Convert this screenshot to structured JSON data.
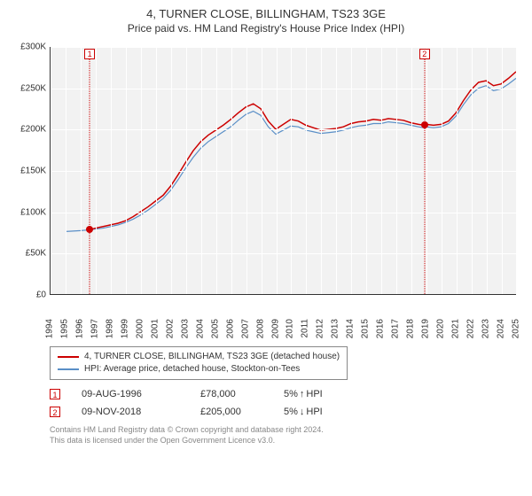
{
  "title": "4, TURNER CLOSE, BILLINGHAM, TS23 3GE",
  "subtitle": "Price paid vs. HM Land Registry's House Price Index (HPI)",
  "chart": {
    "type": "line",
    "background_color": "#f2f2f2",
    "grid_color": "#ffffff",
    "axis_color": "#333333",
    "label_fontsize": 10,
    "title_fontsize": 13,
    "y": {
      "min": 0,
      "max": 300000,
      "step": 50000,
      "ticks": [
        {
          "v": 0,
          "label": "£0"
        },
        {
          "v": 50000,
          "label": "£50K"
        },
        {
          "v": 100000,
          "label": "£100K"
        },
        {
          "v": 150000,
          "label": "£150K"
        },
        {
          "v": 200000,
          "label": "£200K"
        },
        {
          "v": 250000,
          "label": "£250K"
        },
        {
          "v": 300000,
          "label": "£300K"
        }
      ]
    },
    "x": {
      "min": 1994,
      "max": 2025,
      "step": 1,
      "labels": [
        "1994",
        "1995",
        "1996",
        "1997",
        "1998",
        "1999",
        "2000",
        "2001",
        "2002",
        "2003",
        "2004",
        "2005",
        "2006",
        "2007",
        "2008",
        "2009",
        "2010",
        "2011",
        "2012",
        "2013",
        "2014",
        "2015",
        "2016",
        "2017",
        "2018",
        "2019",
        "2020",
        "2021",
        "2022",
        "2023",
        "2024",
        "2025"
      ]
    },
    "series": [
      {
        "name": "4, TURNER CLOSE, BILLINGHAM, TS23 3GE (detached house)",
        "color": "#cc0000",
        "line_width": 1.5,
        "data": [
          [
            1996.6,
            78000
          ],
          [
            1997,
            80000
          ],
          [
            1997.5,
            82000
          ],
          [
            1998,
            84000
          ],
          [
            1998.5,
            86000
          ],
          [
            1999,
            89000
          ],
          [
            1999.5,
            94000
          ],
          [
            2000,
            100000
          ],
          [
            2000.5,
            106000
          ],
          [
            2001,
            113000
          ],
          [
            2001.5,
            120000
          ],
          [
            2002,
            131000
          ],
          [
            2002.5,
            145000
          ],
          [
            2003,
            160000
          ],
          [
            2003.5,
            174000
          ],
          [
            2004,
            185000
          ],
          [
            2004.5,
            193000
          ],
          [
            2005,
            199000
          ],
          [
            2005.5,
            205000
          ],
          [
            2006,
            212000
          ],
          [
            2006.5,
            220000
          ],
          [
            2007,
            227000
          ],
          [
            2007.5,
            231000
          ],
          [
            2008,
            225000
          ],
          [
            2008.5,
            210000
          ],
          [
            2009,
            200000
          ],
          [
            2009.5,
            206000
          ],
          [
            2010,
            212000
          ],
          [
            2010.5,
            210000
          ],
          [
            2011,
            205000
          ],
          [
            2011.5,
            202000
          ],
          [
            2012,
            199000
          ],
          [
            2012.5,
            200000
          ],
          [
            2013,
            201000
          ],
          [
            2013.5,
            203000
          ],
          [
            2014,
            207000
          ],
          [
            2014.5,
            209000
          ],
          [
            2015,
            210000
          ],
          [
            2015.5,
            212000
          ],
          [
            2016,
            211000
          ],
          [
            2016.5,
            213000
          ],
          [
            2017,
            212000
          ],
          [
            2017.5,
            211000
          ],
          [
            2018,
            208000
          ],
          [
            2018.5,
            206000
          ],
          [
            2018.86,
            205000
          ],
          [
            2019,
            206000
          ],
          [
            2019.5,
            205000
          ],
          [
            2020,
            206000
          ],
          [
            2020.5,
            210000
          ],
          [
            2021,
            220000
          ],
          [
            2021.5,
            235000
          ],
          [
            2022,
            248000
          ],
          [
            2022.5,
            257000
          ],
          [
            2023,
            259000
          ],
          [
            2023.5,
            253000
          ],
          [
            2024,
            255000
          ],
          [
            2024.5,
            262000
          ],
          [
            2025,
            270000
          ]
        ]
      },
      {
        "name": "HPI: Average price, detached house, Stockton-on-Tees",
        "color": "#5a8fc7",
        "line_width": 1.2,
        "data": [
          [
            1995,
            76000
          ],
          [
            1995.5,
            76500
          ],
          [
            1996,
            77000
          ],
          [
            1996.6,
            78000
          ],
          [
            1997,
            79000
          ],
          [
            1997.5,
            80000
          ],
          [
            1998,
            82000
          ],
          [
            1998.5,
            84000
          ],
          [
            1999,
            87000
          ],
          [
            1999.5,
            91000
          ],
          [
            2000,
            96000
          ],
          [
            2000.5,
            102000
          ],
          [
            2001,
            109000
          ],
          [
            2001.5,
            116000
          ],
          [
            2002,
            126000
          ],
          [
            2002.5,
            139000
          ],
          [
            2003,
            153000
          ],
          [
            2003.5,
            166000
          ],
          [
            2004,
            177000
          ],
          [
            2004.5,
            185000
          ],
          [
            2005,
            191000
          ],
          [
            2005.5,
            197000
          ],
          [
            2006,
            203000
          ],
          [
            2006.5,
            211000
          ],
          [
            2007,
            218000
          ],
          [
            2007.5,
            222000
          ],
          [
            2008,
            217000
          ],
          [
            2008.5,
            203000
          ],
          [
            2009,
            194000
          ],
          [
            2009.5,
            199000
          ],
          [
            2010,
            204000
          ],
          [
            2010.5,
            203000
          ],
          [
            2011,
            199000
          ],
          [
            2011.5,
            197000
          ],
          [
            2012,
            195000
          ],
          [
            2012.5,
            196000
          ],
          [
            2013,
            197000
          ],
          [
            2013.5,
            199000
          ],
          [
            2014,
            202000
          ],
          [
            2014.5,
            204000
          ],
          [
            2015,
            205000
          ],
          [
            2015.5,
            207000
          ],
          [
            2016,
            207000
          ],
          [
            2016.5,
            209000
          ],
          [
            2017,
            208000
          ],
          [
            2017.5,
            207000
          ],
          [
            2018,
            205000
          ],
          [
            2018.5,
            203000
          ],
          [
            2018.86,
            202000
          ],
          [
            2019,
            203000
          ],
          [
            2019.5,
            202000
          ],
          [
            2020,
            203000
          ],
          [
            2020.5,
            207000
          ],
          [
            2021,
            216000
          ],
          [
            2021.5,
            230000
          ],
          [
            2022,
            242000
          ],
          [
            2022.5,
            250000
          ],
          [
            2023,
            253000
          ],
          [
            2023.5,
            247000
          ],
          [
            2024,
            249000
          ],
          [
            2024.5,
            255000
          ],
          [
            2025,
            262000
          ]
        ]
      }
    ],
    "markers": [
      {
        "idx": "1",
        "x": 1996.6,
        "y": 78000
      },
      {
        "idx": "2",
        "x": 2018.86,
        "y": 205000
      }
    ],
    "marker_color": "#cc0000"
  },
  "legend": {
    "border_color": "#888888",
    "items": [
      {
        "color": "#cc0000",
        "label": "4, TURNER CLOSE, BILLINGHAM, TS23 3GE (detached house)"
      },
      {
        "color": "#5a8fc7",
        "label": "HPI: Average price, detached house, Stockton-on-Tees"
      }
    ]
  },
  "sales": [
    {
      "idx": "1",
      "date": "09-AUG-1996",
      "price": "£78,000",
      "delta_pct": "5%",
      "delta_dir": "↑",
      "delta_label": "HPI"
    },
    {
      "idx": "2",
      "date": "09-NOV-2018",
      "price": "£205,000",
      "delta_pct": "5%",
      "delta_dir": "↓",
      "delta_label": "HPI"
    }
  ],
  "footer": {
    "line1": "Contains HM Land Registry data © Crown copyright and database right 2024.",
    "line2": "This data is licensed under the Open Government Licence v3.0."
  }
}
